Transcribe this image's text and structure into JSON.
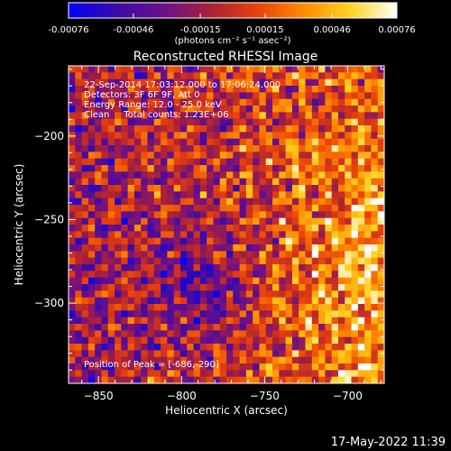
{
  "colorbar": {
    "ticks": [
      "-0.00076",
      "-0.00046",
      "-0.00015",
      "0.00015",
      "0.00046",
      "0.00076"
    ],
    "tick_values": [
      -0.00076,
      -0.00046,
      -0.00015,
      0.00015,
      0.00046,
      0.00076
    ],
    "units": "(photons cm⁻² s⁻¹ asec⁻²)",
    "colormap": [
      "#0000ff",
      "#3a0aa8",
      "#6a0f8c",
      "#a8203a",
      "#e8400a",
      "#ff8a00",
      "#ffd21e",
      "#ffffff"
    ]
  },
  "chart_data": {
    "type": "heatmap",
    "title": "Reconstructed RHESSI Image",
    "xlabel": "Heliocentric X (arcsec)",
    "ylabel": "Heliocentric Y (arcsec)",
    "xlim": [
      -868,
      -678
    ],
    "ylim": [
      -348,
      -158
    ],
    "x_ticks": [
      -850,
      -800,
      -750,
      -700
    ],
    "y_ticks": [
      -200,
      -250,
      -300
    ],
    "x_tick_labels": [
      "−850",
      "−800",
      "−750",
      "−700"
    ],
    "y_tick_labels": [
      "−200",
      "−250",
      "−300"
    ],
    "value_range": [
      -0.00076,
      0.00076
    ],
    "peak_position": [
      -686,
      -290
    ],
    "annotations": [
      "22-Sep-2014 17:03:12.000 to 17:06:24.000",
      "Detectors: 3F 6F 9F, Att 0",
      "Energy Range: 12.0 - 25.0 keV",
      "Clean     Total counts: 1.23E+06",
      "Position of Peak = [-686,-290]"
    ]
  },
  "footer": {
    "timestamp": "17-May-2022 11:39"
  }
}
